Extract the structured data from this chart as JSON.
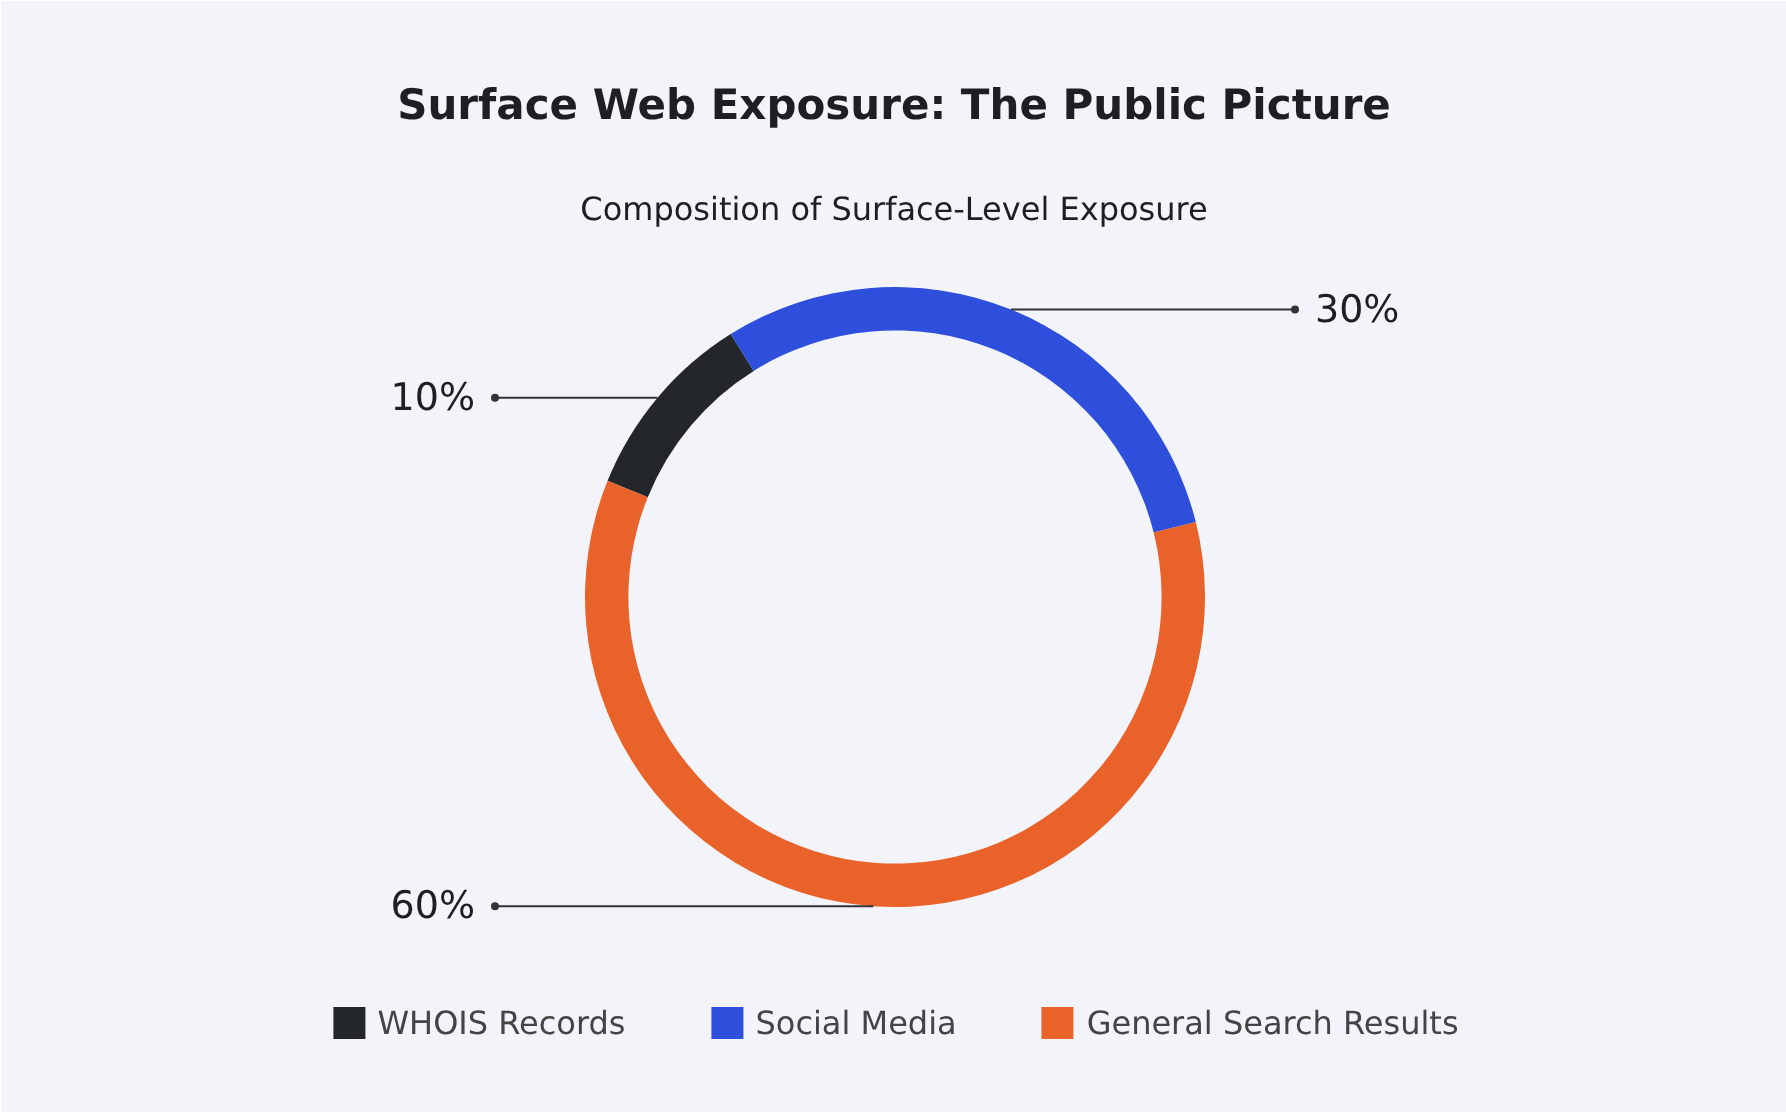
{
  "chart_data": {
    "type": "donut",
    "title": "Surface Web Exposure: The Public Picture",
    "subtitle": "Composition of Surface-Level Exposure",
    "categories": [
      "WHOIS Records",
      "Social Media",
      "General Search Results"
    ],
    "values": [
      10,
      30,
      60
    ],
    "value_labels": [
      "10%",
      "30%",
      "60%"
    ],
    "colors": [
      "#23272b",
      "#2e4fdc",
      "#e9622a"
    ],
    "legend": "bottom"
  }
}
